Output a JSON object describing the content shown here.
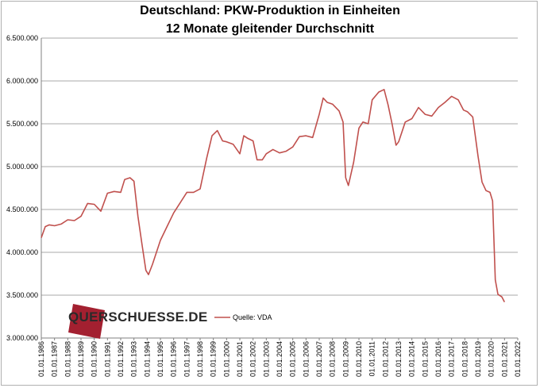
{
  "chart_data": {
    "type": "line",
    "title": "Deutschland: PKW-Produktion in Einheiten",
    "subtitle": "12 Monate gleitender Durchschnitt",
    "xlabel": "",
    "ylabel": "",
    "ylim": [
      3000000,
      6500000
    ],
    "y_ticks": [
      "3.000.000",
      "3.500.000",
      "4.000.000",
      "4.500.000",
      "5.000.000",
      "5.500.000",
      "6.000.000",
      "6.500.000"
    ],
    "x_ticks": [
      "01.01.1986",
      "01.01.1987",
      "01.01.1988",
      "01.01.1989",
      "01.01.1990",
      "01.01.1991",
      "01.01.1992",
      "01.01.1993",
      "01.01.1994",
      "01.01.1995",
      "01.01.1996",
      "01.01.1997",
      "01.01.1998",
      "01.01.1999",
      "01.01.2000",
      "01.01.2001",
      "01.01.2002",
      "01.01.2003",
      "01.01.2004",
      "01.01.2005",
      "01.01.2006",
      "01.01.2007",
      "01.01.2008",
      "01.01.2009",
      "01.01.2010",
      "01.01.2011",
      "01.01.2012",
      "01.01.2013",
      "01.01.2014",
      "01.01.2015",
      "01.01.2016",
      "01.01.2017",
      "01.01.2018",
      "01.01.2019",
      "01.01.2020",
      "01.01.2021",
      "01.01.2022"
    ],
    "grid": true,
    "legend_position": "bottom-center",
    "color": "#c0504d",
    "series": [
      {
        "name": "Quelle: VDA",
        "x": [
          1986.0,
          1986.3,
          1986.6,
          1987.0,
          1987.5,
          1988.0,
          1988.5,
          1989.0,
          1989.5,
          1990.0,
          1990.5,
          1991.0,
          1991.5,
          1992.0,
          1992.3,
          1992.7,
          1993.0,
          1993.3,
          1993.6,
          1993.9,
          1994.1,
          1994.4,
          1995.0,
          1995.5,
          1996.0,
          1996.5,
          1997.0,
          1997.5,
          1998.0,
          1998.5,
          1998.9,
          1999.3,
          1999.7,
          2000.0,
          2000.5,
          2001.0,
          2001.3,
          2001.6,
          2002.0,
          2002.3,
          2002.7,
          2003.0,
          2003.5,
          2004.0,
          2004.5,
          2005.0,
          2005.5,
          2006.0,
          2006.5,
          2007.0,
          2007.3,
          2007.6,
          2008.0,
          2008.5,
          2008.8,
          2009.0,
          2009.2,
          2009.6,
          2010.0,
          2010.3,
          2010.7,
          2011.0,
          2011.5,
          2011.9,
          2012.2,
          2012.5,
          2012.8,
          2013.0,
          2013.5,
          2014.0,
          2014.5,
          2015.0,
          2015.5,
          2016.0,
          2016.5,
          2017.0,
          2017.5,
          2017.9,
          2018.2,
          2018.6,
          2019.0,
          2019.3,
          2019.6,
          2019.9,
          2020.1,
          2020.3,
          2020.5,
          2020.8,
          2021.0
        ],
        "values": [
          4170000,
          4300000,
          4320000,
          4310000,
          4330000,
          4380000,
          4370000,
          4420000,
          4570000,
          4560000,
          4480000,
          4690000,
          4710000,
          4700000,
          4850000,
          4870000,
          4830000,
          4420000,
          4100000,
          3790000,
          3740000,
          3860000,
          4140000,
          4300000,
          4460000,
          4580000,
          4700000,
          4700000,
          4740000,
          5100000,
          5360000,
          5420000,
          5300000,
          5290000,
          5260000,
          5150000,
          5360000,
          5330000,
          5300000,
          5080000,
          5080000,
          5150000,
          5200000,
          5160000,
          5180000,
          5230000,
          5350000,
          5360000,
          5340000,
          5610000,
          5800000,
          5750000,
          5730000,
          5650000,
          5520000,
          4870000,
          4780000,
          5050000,
          5450000,
          5520000,
          5500000,
          5780000,
          5870000,
          5900000,
          5720000,
          5500000,
          5250000,
          5290000,
          5520000,
          5560000,
          5690000,
          5610000,
          5590000,
          5690000,
          5750000,
          5820000,
          5780000,
          5660000,
          5640000,
          5580000,
          5120000,
          4820000,
          4720000,
          4700000,
          4600000,
          3680000,
          3510000,
          3480000,
          3420000
        ]
      }
    ]
  },
  "watermark": {
    "text": "QUERSCHUESSE.DE",
    "color": "#a32030"
  }
}
